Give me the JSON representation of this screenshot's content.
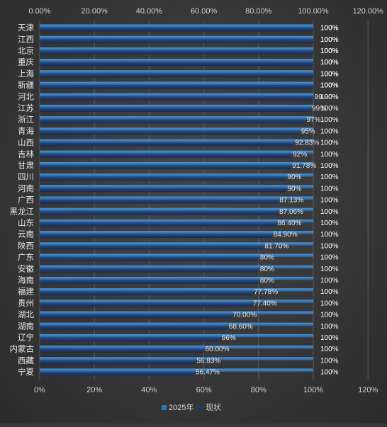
{
  "chart_data": {
    "type": "bar",
    "orientation": "horizontal",
    "categories": [
      "天津",
      "江西",
      "北京",
      "重庆",
      "上海",
      "新疆",
      "河北",
      "江苏",
      "浙江",
      "青海",
      "山西",
      "吉林",
      "甘肃",
      "四川",
      "河南",
      "广西",
      "黑龙江",
      "山东",
      "云南",
      "陕西",
      "广东",
      "安徽",
      "海南",
      "福建",
      "贵州",
      "湖北",
      "湖南",
      "辽宁",
      "内蒙古",
      "西藏",
      "宁夏"
    ],
    "series": [
      {
        "name": "2025年",
        "color": "#2e75b6",
        "values": [
          100,
          100,
          100,
          100,
          100,
          100,
          100,
          100,
          100,
          100,
          100,
          100,
          100,
          100,
          100,
          100,
          100,
          100,
          100,
          100,
          100,
          100,
          100,
          100,
          100,
          100,
          100,
          100,
          100,
          100,
          100
        ],
        "labels": [
          "100%",
          "100%",
          "100%",
          "100%",
          "100%",
          "100%",
          "100%",
          "100%",
          "100%",
          "100%",
          "100%",
          "100%",
          "100%",
          "100%",
          "100%",
          "100%",
          "100%",
          "100%",
          "100%",
          "100%",
          "100%",
          "100%",
          "100%",
          "100%",
          "100%",
          "100%",
          "100%",
          "100%",
          "100%",
          "100%",
          "100%"
        ]
      },
      {
        "name": "现状",
        "color": "#1f3864",
        "values": [
          100,
          100,
          100,
          100,
          100,
          100,
          99.9,
          99,
          97,
          95,
          92.83,
          92,
          91.78,
          90,
          90,
          87.13,
          87.06,
          86.4,
          84.9,
          81.7,
          80,
          80,
          80,
          77.78,
          77.4,
          70,
          68.6,
          66,
          60,
          56.83,
          56.47
        ],
        "labels": [
          "100%",
          "100%",
          "100%",
          "100%",
          "100%",
          "100%",
          "99.90%",
          "99%",
          "97%",
          "95%",
          "92.83%",
          "92%",
          "91.78%",
          "90%",
          "90%",
          "87.13%",
          "87.06%",
          "86.40%",
          "84.90%",
          "81.70%",
          "80%",
          "80%",
          "80%",
          "77.78%",
          "77.40%",
          "70.00%",
          "68.60%",
          "66%",
          "60.00%",
          "56.83%",
          "56.47%"
        ]
      }
    ],
    "x_top_ticks": [
      "0.00%",
      "20.00%",
      "40.00%",
      "60.00%",
      "80.00%",
      "100.00%",
      "120.00%"
    ],
    "x_bottom_ticks": [
      "0%",
      "20%",
      "40%",
      "60%",
      "80%",
      "100%",
      "120%"
    ],
    "xlim": [
      0,
      120
    ],
    "grid": true,
    "legend_position": "bottom"
  }
}
